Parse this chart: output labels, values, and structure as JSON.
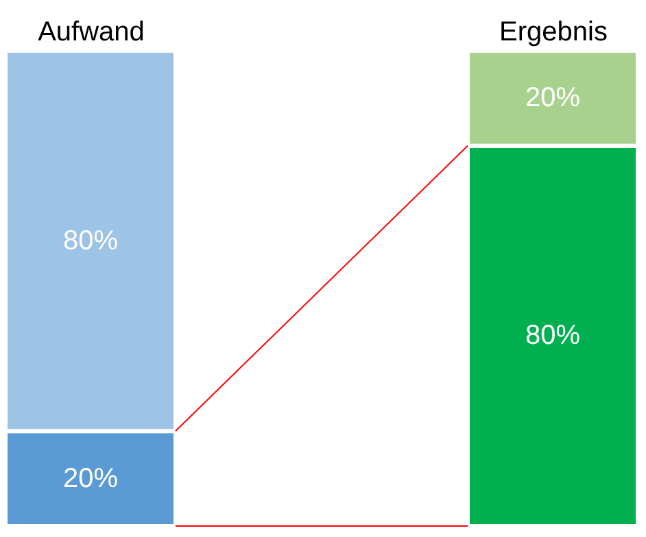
{
  "chart_data": {
    "type": "bar",
    "stacked": true,
    "categories": [
      "Aufwand",
      "Ergebnis"
    ],
    "series": [
      {
        "colors": [
          "#5b9bd5",
          "#00b050"
        ],
        "values": [
          20,
          80
        ],
        "value_labels": [
          "20%",
          "80%"
        ]
      },
      {
        "colors": [
          "#9dc3e6",
          "#a9d18e"
        ],
        "values": [
          80,
          20
        ],
        "value_labels": [
          "80%",
          "20%"
        ]
      }
    ]
  }
}
